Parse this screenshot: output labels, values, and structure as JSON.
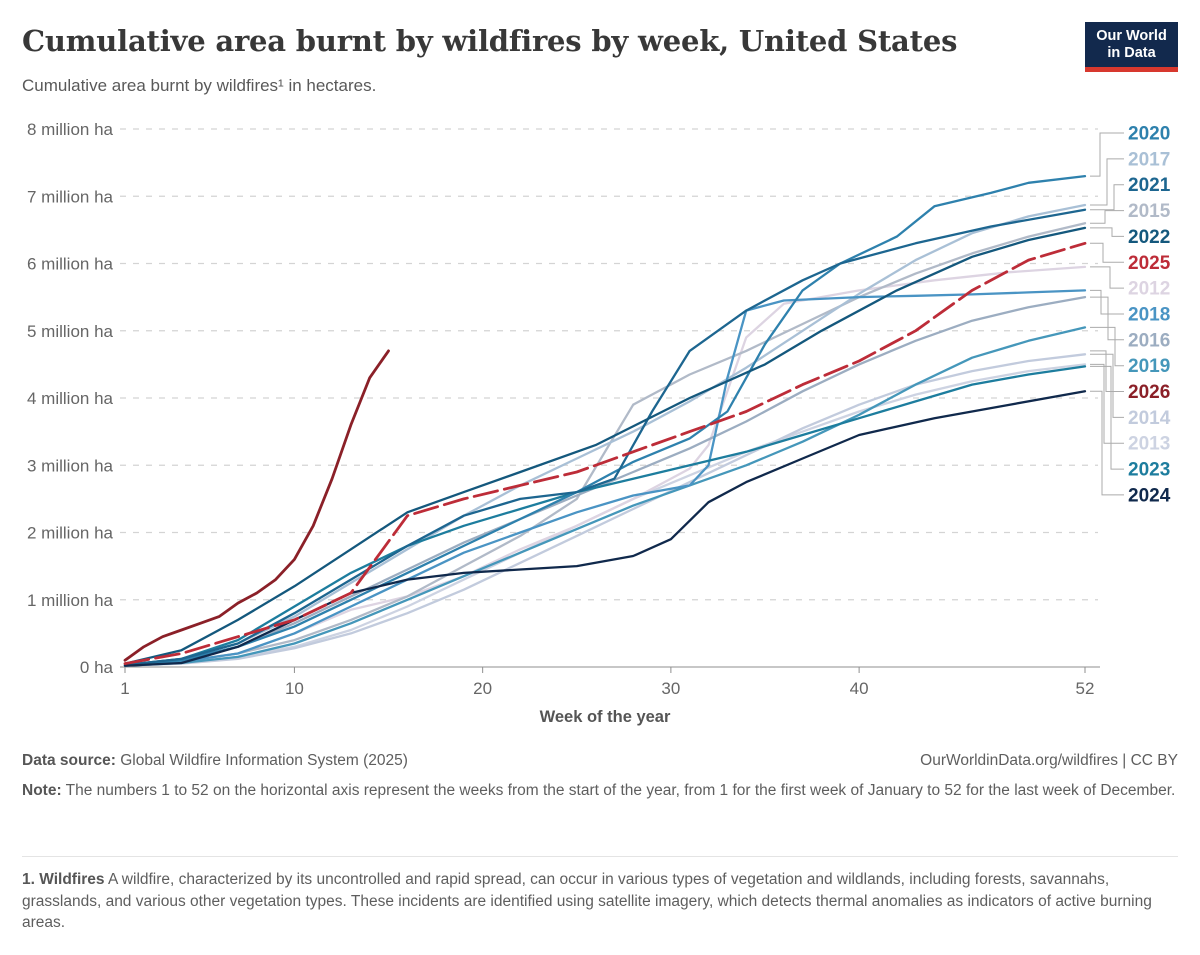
{
  "header": {
    "title": "Cumulative area burnt by wildfires by week, United States",
    "subtitle": "Cumulative area burnt by wildfires¹ in hectares."
  },
  "logo": {
    "line1": "Our World",
    "line2": "in Data"
  },
  "chart_data": {
    "type": "line",
    "title": "Cumulative area burnt by wildfires by week, United States",
    "xlabel": "Week of the year",
    "ylabel": "",
    "unit": "million ha",
    "xlim": [
      1,
      52
    ],
    "ylim": [
      0,
      8
    ],
    "grid": true,
    "legend_position": "right",
    "x_ticks": [
      1,
      10,
      20,
      30,
      40,
      52
    ],
    "y_ticks": [
      {
        "value": 0,
        "label": "0 ha"
      },
      {
        "value": 1,
        "label": "1 million ha"
      },
      {
        "value": 2,
        "label": "2 million ha"
      },
      {
        "value": 3,
        "label": "3 million ha"
      },
      {
        "value": 4,
        "label": "4 million ha"
      },
      {
        "value": 5,
        "label": "5 million ha"
      },
      {
        "value": 6,
        "label": "6 million ha"
      },
      {
        "value": 7,
        "label": "7 million ha"
      },
      {
        "value": 8,
        "label": "8 million ha"
      }
    ],
    "series": [
      {
        "name": "2013",
        "color": "#cdd3e2",
        "weeks": [
          1,
          4,
          7,
          10,
          13,
          16,
          19,
          22,
          25,
          28,
          31,
          34,
          37,
          40,
          43,
          46,
          49,
          52
        ],
        "values": [
          0.02,
          0.06,
          0.15,
          0.3,
          0.55,
          0.9,
          1.3,
          1.7,
          2.1,
          2.5,
          2.85,
          3.2,
          3.5,
          3.8,
          4.05,
          4.25,
          4.4,
          4.5
        ]
      },
      {
        "name": "2014",
        "color": "#c2cbdd",
        "weeks": [
          1,
          4,
          7,
          10,
          13,
          16,
          19,
          22,
          25,
          28,
          31,
          34,
          37,
          40,
          43,
          46,
          49,
          52
        ],
        "values": [
          0.02,
          0.05,
          0.12,
          0.28,
          0.5,
          0.8,
          1.15,
          1.55,
          1.95,
          2.35,
          2.75,
          3.15,
          3.55,
          3.9,
          4.2,
          4.4,
          4.55,
          4.65
        ]
      },
      {
        "name": "2012",
        "color": "#ddd4e2",
        "weeks": [
          1,
          4,
          7,
          10,
          13,
          16,
          19,
          22,
          25,
          28,
          31,
          32,
          34,
          36,
          40,
          44,
          48,
          52
        ],
        "values": [
          0.02,
          0.07,
          0.2,
          0.5,
          0.85,
          1.05,
          1.35,
          1.75,
          2.1,
          2.5,
          2.95,
          3.3,
          4.9,
          5.4,
          5.6,
          5.75,
          5.87,
          5.95
        ]
      },
      {
        "name": "2015",
        "color": "#b1bac8",
        "weeks": [
          1,
          4,
          7,
          10,
          13,
          16,
          19,
          22,
          25,
          28,
          31,
          34,
          37,
          40,
          43,
          46,
          49,
          52
        ],
        "values": [
          0.02,
          0.08,
          0.2,
          0.4,
          0.7,
          1.05,
          1.5,
          1.95,
          2.5,
          3.9,
          4.35,
          4.7,
          5.1,
          5.5,
          5.85,
          6.15,
          6.4,
          6.6
        ]
      },
      {
        "name": "2016",
        "color": "#9cadc1",
        "weeks": [
          1,
          4,
          7,
          10,
          13,
          16,
          19,
          22,
          25,
          28,
          31,
          34,
          37,
          40,
          43,
          46,
          49,
          52
        ],
        "values": [
          0.03,
          0.1,
          0.3,
          0.65,
          1.05,
          1.45,
          1.85,
          2.2,
          2.55,
          2.9,
          3.25,
          3.65,
          4.1,
          4.5,
          4.85,
          5.15,
          5.35,
          5.5
        ]
      },
      {
        "name": "2017",
        "color": "#a9c0d6",
        "weeks": [
          1,
          4,
          7,
          10,
          13,
          16,
          19,
          22,
          25,
          28,
          31,
          34,
          37,
          40,
          43,
          46,
          49,
          52
        ],
        "values": [
          0.03,
          0.12,
          0.35,
          0.75,
          1.25,
          1.75,
          2.25,
          2.7,
          3.1,
          3.5,
          3.95,
          4.45,
          5.0,
          5.55,
          6.05,
          6.45,
          6.7,
          6.87
        ]
      },
      {
        "name": "2019",
        "color": "#4597ba",
        "weeks": [
          1,
          4,
          7,
          10,
          13,
          16,
          19,
          22,
          25,
          28,
          31,
          34,
          37,
          40,
          43,
          46,
          49,
          52
        ],
        "values": [
          0.02,
          0.06,
          0.15,
          0.35,
          0.65,
          1.0,
          1.35,
          1.7,
          2.05,
          2.4,
          2.7,
          3.0,
          3.35,
          3.75,
          4.2,
          4.6,
          4.85,
          5.05
        ]
      },
      {
        "name": "2018",
        "color": "#4a94c4",
        "weeks": [
          1,
          4,
          7,
          10,
          13,
          16,
          19,
          22,
          25,
          28,
          31,
          32,
          33,
          34,
          36,
          40,
          43,
          46,
          49,
          52
        ],
        "values": [
          0.02,
          0.08,
          0.2,
          0.5,
          0.9,
          1.3,
          1.7,
          2.0,
          2.3,
          2.55,
          2.7,
          3.0,
          4.3,
          5.3,
          5.45,
          5.5,
          5.52,
          5.54,
          5.57,
          5.6
        ]
      },
      {
        "name": "2023",
        "color": "#1d7d9e",
        "weeks": [
          1,
          4,
          7,
          10,
          13,
          16,
          19,
          22,
          25,
          28,
          31,
          34,
          37,
          40,
          43,
          46,
          49,
          52
        ],
        "values": [
          0.03,
          0.12,
          0.4,
          0.9,
          1.4,
          1.8,
          2.1,
          2.35,
          2.6,
          2.8,
          3.0,
          3.2,
          3.45,
          3.7,
          3.95,
          4.2,
          4.35,
          4.47
        ]
      },
      {
        "name": "2020",
        "color": "#2e81ad",
        "weeks": [
          1,
          4,
          7,
          10,
          13,
          16,
          19,
          22,
          25,
          28,
          31,
          33,
          35,
          37,
          39,
          42,
          44,
          47,
          49,
          52
        ],
        "values": [
          0.03,
          0.1,
          0.3,
          0.6,
          1.0,
          1.4,
          1.8,
          2.2,
          2.6,
          3.05,
          3.4,
          3.8,
          4.8,
          5.6,
          6.0,
          6.4,
          6.85,
          7.05,
          7.2,
          7.3
        ]
      },
      {
        "name": "2021",
        "color": "#1d6690",
        "weeks": [
          1,
          4,
          7,
          10,
          13,
          16,
          19,
          22,
          25,
          27,
          29,
          31,
          34,
          37,
          39,
          43,
          47,
          52
        ],
        "values": [
          0.03,
          0.12,
          0.35,
          0.8,
          1.3,
          1.8,
          2.25,
          2.5,
          2.6,
          2.8,
          3.8,
          4.7,
          5.3,
          5.75,
          6.0,
          6.3,
          6.55,
          6.8
        ]
      },
      {
        "name": "2022",
        "color": "#14587d",
        "weeks": [
          1,
          4,
          7,
          10,
          13,
          16,
          19,
          22,
          26,
          31,
          35,
          38,
          42,
          46,
          49,
          52
        ],
        "values": [
          0.05,
          0.25,
          0.7,
          1.2,
          1.75,
          2.3,
          2.6,
          2.9,
          3.3,
          4.0,
          4.5,
          5.0,
          5.6,
          6.1,
          6.35,
          6.53
        ]
      },
      {
        "name": "2024",
        "color": "#10294c",
        "weeks": [
          1,
          4,
          7,
          10,
          13,
          16,
          19,
          22,
          25,
          28,
          30,
          32,
          34,
          37,
          40,
          44,
          48,
          52
        ],
        "values": [
          0.02,
          0.06,
          0.3,
          0.7,
          1.1,
          1.3,
          1.4,
          1.45,
          1.5,
          1.65,
          1.9,
          2.45,
          2.75,
          3.1,
          3.45,
          3.7,
          3.9,
          4.1
        ]
      },
      {
        "name": "2025",
        "color": "#bd2c38",
        "dash": "24 7",
        "weeks": [
          1,
          4,
          7,
          10,
          13,
          16,
          19,
          22,
          25,
          28,
          31,
          34,
          37,
          40,
          43,
          46,
          49,
          52
        ],
        "values": [
          0.05,
          0.2,
          0.45,
          0.7,
          1.1,
          2.25,
          2.5,
          2.7,
          2.9,
          3.2,
          3.5,
          3.8,
          4.2,
          4.55,
          5.0,
          5.6,
          6.05,
          6.3
        ]
      },
      {
        "name": "2026",
        "color": "#8b2028",
        "weeks": [
          1,
          2,
          3,
          4,
          5,
          6,
          7,
          8,
          9,
          10,
          11,
          12,
          13,
          14,
          15
        ],
        "values": [
          0.1,
          0.3,
          0.45,
          0.55,
          0.65,
          0.75,
          0.95,
          1.1,
          1.3,
          1.6,
          2.1,
          2.8,
          3.6,
          4.3,
          4.7
        ]
      }
    ]
  },
  "footer": {
    "source_label": "Data source:",
    "source_text": " Global Wildfire Information System (2025)",
    "cc_text": "OurWorldinData.org/wildfires | CC BY",
    "note_label": "Note:",
    "note_text": " The numbers 1 to 52 on the horizontal axis represent the weeks from the start of the year, from 1 for the first week of January to 52 for the last week of December.",
    "footnote_label": "1. Wildfires",
    "footnote_text": " A wildfire, characterized by its uncontrolled and rapid spread, can occur in various types of vegetation and wildlands, including forests, savannahs, grasslands, and various other vegetation types. These incidents are identified using satellite imagery, which detects thermal anomalies as indicators of active burning areas."
  }
}
